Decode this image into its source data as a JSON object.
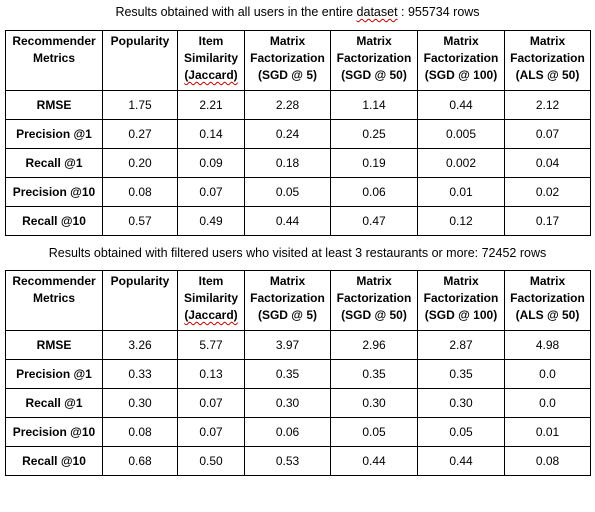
{
  "captions": {
    "top_before": "Results obtained with all users in the entire ",
    "top_word": "dataset",
    "top_after": " : 955734 rows",
    "bottom": "Results obtained with filtered users who visited at least 3 restaurants or more: 72452 rows"
  },
  "headers": [
    {
      "l1": "Recommender",
      "l2": "Metrics",
      "l3": ""
    },
    {
      "l1": "Popularity",
      "l2": "",
      "l3": ""
    },
    {
      "l1": "Item",
      "l2": "Similarity",
      "l3": "(Jaccard)"
    },
    {
      "l1": "Matrix",
      "l2": "Factorization",
      "l3": "(SGD @ 5)"
    },
    {
      "l1": "Matrix",
      "l2": "Factorization",
      "l3": "(SGD @ 50)"
    },
    {
      "l1": "Matrix",
      "l2": "Factorization",
      "l3": "(SGD @ 100)"
    },
    {
      "l1": "Matrix",
      "l2": "Factorization",
      "l3": "(ALS @ 50)"
    }
  ],
  "table1": [
    [
      "RMSE",
      "1.75",
      "2.21",
      "2.28",
      "1.14",
      "0.44",
      "2.12"
    ],
    [
      "Precision @1",
      "0.27",
      "0.14",
      "0.24",
      "0.25",
      "0.005",
      "0.07"
    ],
    [
      "Recall @1",
      "0.20",
      "0.09",
      "0.18",
      "0.19",
      "0.002",
      "0.04"
    ],
    [
      "Precision @10",
      "0.08",
      "0.07",
      "0.05",
      "0.06",
      "0.01",
      "0.02"
    ],
    [
      "Recall @10",
      "0.57",
      "0.49",
      "0.44",
      "0.47",
      "0.12",
      "0.17"
    ]
  ],
  "table2": [
    [
      "RMSE",
      "3.26",
      "5.77",
      "3.97",
      "2.96",
      "2.87",
      "4.98"
    ],
    [
      "Precision @1",
      "0.33",
      "0.13",
      "0.35",
      "0.35",
      "0.35",
      "0.0"
    ],
    [
      "Recall @1",
      "0.30",
      "0.07",
      "0.30",
      "0.30",
      "0.30",
      "0.0"
    ],
    [
      "Precision @10",
      "0.08",
      "0.07",
      "0.06",
      "0.05",
      "0.05",
      "0.01"
    ],
    [
      "Recall @10",
      "0.68",
      "0.50",
      "0.53",
      "0.44",
      "0.44",
      "0.08"
    ]
  ]
}
